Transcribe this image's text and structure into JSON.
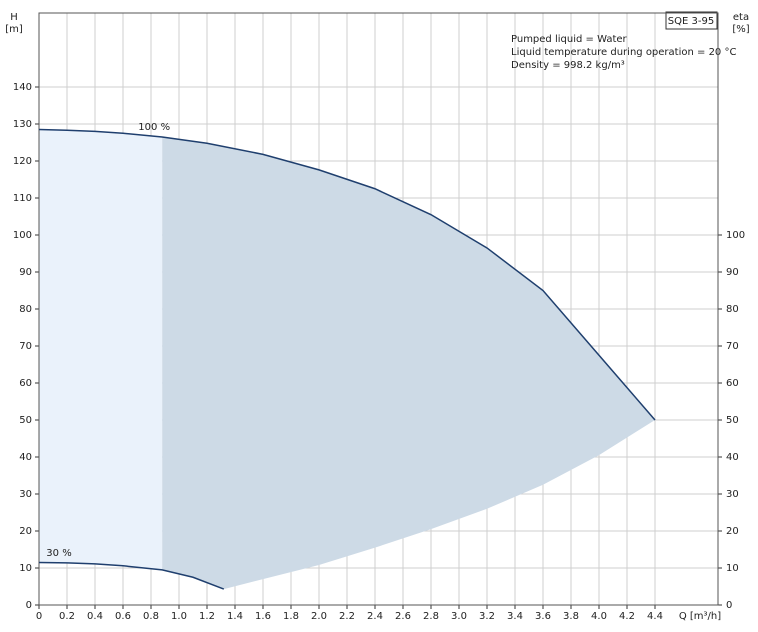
{
  "chart_data": {
    "type": "line",
    "title": "SQE 3-95",
    "info": [
      "Pumped liquid = Water",
      "Liquid temperature during operation = 20 °C",
      "Density = 998.2 kg/m³"
    ],
    "y_label": "H",
    "y_unit": "[m]",
    "y2_label": "eta",
    "y2_unit": "[%]",
    "x_label": "Q [m³/h]",
    "xlim": [
      0,
      4.85
    ],
    "ylim": [
      0,
      160
    ],
    "y2lim": [
      0,
      160
    ],
    "xticks": [
      0,
      0.2,
      0.4,
      0.6,
      0.8,
      {
        "value": 1.0,
        "label": "1.0"
      },
      1.2,
      1.4,
      1.6,
      1.8,
      {
        "value": 2.0,
        "label": "2.0"
      },
      2.2,
      2.4,
      2.6,
      2.8,
      {
        "value": 3.0,
        "label": "3.0"
      },
      3.2,
      3.4,
      3.6,
      3.8,
      {
        "value": 4.0,
        "label": "4.0"
      },
      4.2,
      4.4
    ],
    "yticks": [
      0,
      10,
      20,
      30,
      40,
      50,
      60,
      70,
      80,
      90,
      100,
      110,
      120,
      130,
      140
    ],
    "y2ticks": [
      0,
      10,
      20,
      30,
      40,
      50,
      60,
      70,
      80,
      90,
      100
    ],
    "grid": true,
    "shade_split_x": 0.88,
    "series": [
      {
        "label": "100 %",
        "color": "#1f3f6e",
        "x": [
          0,
          0.2,
          0.4,
          0.6,
          0.88,
          1.2,
          1.6,
          2.0,
          2.4,
          2.8,
          3.2,
          3.6,
          4.0,
          4.4
        ],
        "values": [
          128.5,
          128.3,
          128,
          127.5,
          126.5,
          124.8,
          121.8,
          117.6,
          112.5,
          105.5,
          96.5,
          85,
          67.5,
          50
        ]
      },
      {
        "label": "30 %",
        "color": "#1f3f6e",
        "x": [
          0,
          0.2,
          0.4,
          0.6,
          0.88,
          1.1,
          1.32
        ],
        "values": [
          11.5,
          11.4,
          11.1,
          10.6,
          9.5,
          7.5,
          4.3
        ]
      },
      {
        "x": [
          1.32,
          1.6,
          2.0,
          2.4,
          2.8,
          3.2,
          3.6,
          4.0,
          4.4
        ],
        "values": [
          4.3,
          7,
          10.8,
          15.5,
          20.5,
          26,
          32.5,
          40.5,
          50
        ]
      }
    ],
    "light_fill": "#eaf2fb",
    "dark_fill": "#cddae6"
  }
}
